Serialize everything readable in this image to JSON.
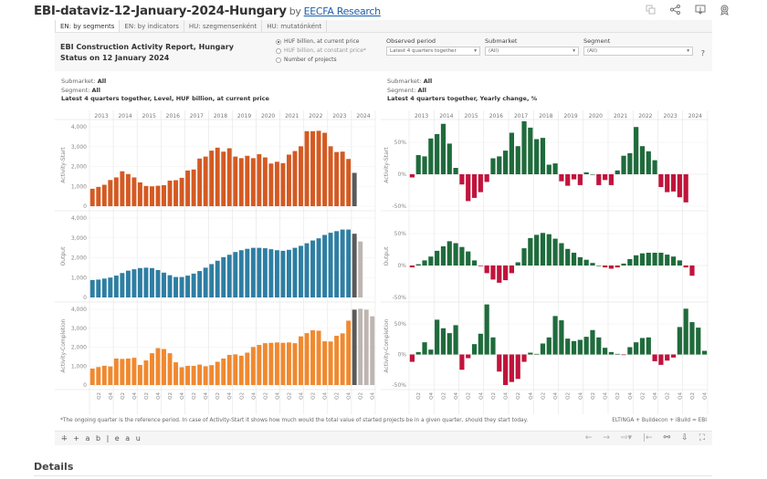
{
  "page": {
    "title": "EBI-dataviz-12-January-2024-Hungary",
    "by": "by",
    "author_link": "EECFA Research",
    "icons": [
      "copy-icon",
      "share-icon",
      "download-icon",
      "badge-icon"
    ]
  },
  "tabs": [
    {
      "label": "EN: by segments",
      "active": true
    },
    {
      "label": "EN: by indicators",
      "active": false
    },
    {
      "label": "HU: szegmensenként",
      "active": false
    },
    {
      "label": "HU: mutatónként",
      "active": false
    }
  ],
  "header": {
    "report_title_line1": "EBI Construction Activity Report, Hungary",
    "report_title_line2": "Status on 12 January 2024",
    "radios": [
      {
        "label": "HUF billion, at current price",
        "checked": true
      },
      {
        "label": "HUF billion, at constant price*",
        "checked": false
      },
      {
        "label": "Number of projects",
        "checked": false
      }
    ],
    "filters": [
      {
        "label": "Observed period",
        "value": "Latest 4 quarters together"
      },
      {
        "label": "Submarket",
        "value": "(All)"
      },
      {
        "label": "Segment",
        "value": "(All)"
      }
    ],
    "help": "?"
  },
  "left_info": {
    "submarket_label": "Submarket:",
    "submarket_value": "All",
    "segment_label": "Segment:",
    "segment_value": "All",
    "caption": "Latest 4 quarters together, Level, HUF billion, at current price"
  },
  "right_info": {
    "submarket_label": "Submarket:",
    "submarket_value": "All",
    "segment_label": "Segment:",
    "segment_value": "All",
    "caption": "Latest 4 quarters together, Yearly change, %"
  },
  "colors": {
    "start": "#d45a22",
    "output": "#2e7ea3",
    "completion": "#f0892f",
    "current": "#5a5a5a",
    "forecast": "#bdb5b1",
    "positive": "#1f6b3c",
    "negative": "#c0143c"
  },
  "chart_data": [
    {
      "type": "bar",
      "title": "Latest 4 quarters together, Level, HUF billion, at current price",
      "years": [
        "2013",
        "2014",
        "2015",
        "2016",
        "2017",
        "2018",
        "2019",
        "2020",
        "2021",
        "2022",
        "2023",
        "2024"
      ],
      "quarter_labels": [
        "Q2",
        "Q4"
      ],
      "ylim": [
        0,
        4000
      ],
      "yticks": [
        "0",
        "1,000",
        "2,000",
        "3,000",
        "4,000"
      ],
      "series": [
        {
          "name": "Activity-Start",
          "values": [
            880,
            970,
            1080,
            1320,
            1450,
            1760,
            1620,
            1450,
            1200,
            1020,
            1000,
            1030,
            1060,
            1290,
            1310,
            1430,
            1800,
            1850,
            2400,
            2500,
            2800,
            2950,
            2750,
            2920,
            2500,
            2420,
            2540,
            2420,
            2620,
            2460,
            2150,
            2240,
            2170,
            2600,
            2780,
            3020,
            3780,
            3780,
            3800,
            3700,
            3020,
            2730,
            2750,
            2380
          ],
          "current": 1680,
          "forecast": []
        },
        {
          "name": "Output",
          "values": [
            880,
            900,
            950,
            1000,
            1100,
            1230,
            1350,
            1420,
            1480,
            1500,
            1480,
            1380,
            1250,
            1120,
            1030,
            1030,
            1100,
            1200,
            1330,
            1500,
            1680,
            1850,
            2030,
            2150,
            2290,
            2380,
            2450,
            2500,
            2500,
            2480,
            2430,
            2380,
            2350,
            2400,
            2500,
            2600,
            2730,
            2870,
            2980,
            3150,
            3260,
            3340,
            3420,
            3420
          ],
          "current": 3210,
          "forecast": [
            2820
          ]
        },
        {
          "name": "Activity-Completion",
          "values": [
            870,
            950,
            1020,
            980,
            1400,
            1380,
            1400,
            1440,
            1060,
            1300,
            1680,
            1950,
            1900,
            1680,
            1200,
            940,
            1010,
            1010,
            1080,
            990,
            1050,
            1230,
            1400,
            1590,
            1620,
            1550,
            1710,
            2010,
            2120,
            2210,
            2230,
            2250,
            2230,
            2250,
            2210,
            2570,
            2740,
            2890,
            2870,
            2310,
            2300,
            2600,
            2730,
            3400
          ],
          "current": 3980,
          "forecast": [
            4030,
            3980,
            3630
          ]
        }
      ]
    },
    {
      "type": "bar",
      "title": "Latest 4 quarters together, Yearly change, %",
      "years": [
        "2013",
        "2014",
        "2015",
        "2016",
        "2017",
        "2018",
        "2019",
        "2020",
        "2021",
        "2022",
        "2023",
        "2024"
      ],
      "quarter_labels": [
        "Q2",
        "Q4"
      ],
      "ylim": [
        -50,
        80
      ],
      "yticks": [
        "-50%",
        "0%",
        "50%"
      ],
      "series": [
        {
          "name": "Activity-Start",
          "values": [
            -5,
            30,
            28,
            56,
            63,
            79,
            48,
            10,
            -16,
            -42,
            -37,
            -28,
            -12,
            25,
            28,
            37,
            65,
            44,
            83,
            73,
            55,
            57,
            15,
            17,
            -11,
            -18,
            -8,
            -17,
            3,
            0,
            -17,
            -9,
            -17,
            6,
            29,
            33,
            74,
            44,
            36,
            22,
            -20,
            -28,
            -27,
            -36,
            -44
          ]
        },
        {
          "name": "Output",
          "values": [
            -3,
            2,
            8,
            14,
            23,
            30,
            38,
            35,
            29,
            22,
            8,
            -1,
            -12,
            -22,
            -27,
            -23,
            -12,
            5,
            27,
            43,
            48,
            51,
            49,
            42,
            35,
            26,
            20,
            13,
            9,
            4,
            0,
            -3,
            -5,
            -3,
            3,
            10,
            16,
            19,
            20,
            20,
            20,
            17,
            14,
            8,
            -3,
            -16
          ]
        },
        {
          "name": "Activity-Completion",
          "values": [
            -12,
            4,
            20,
            8,
            57,
            43,
            35,
            48,
            -25,
            -6,
            17,
            34,
            82,
            28,
            -28,
            -50,
            -45,
            -40,
            -12,
            3,
            1,
            18,
            28,
            63,
            56,
            26,
            22,
            24,
            29,
            40,
            28,
            11,
            4,
            1,
            -1,
            12,
            20,
            27,
            28,
            -11,
            -17,
            -10,
            -5,
            45,
            75,
            53,
            44,
            6
          ]
        }
      ]
    }
  ],
  "footer": {
    "note": "*The ongoing quarter is the reference period. In case of Activity-Start it shows how much would the total value of started projects be in a given quarter, should they start today.",
    "credit": "ELTINGA + Buildecon + iBuild = EBI"
  },
  "toolbar": {
    "logo": "+ a b | e a u",
    "icons": [
      "undo-icon",
      "redo-icon",
      "revert-icon",
      "reset-icon",
      "share-icon",
      "download-icon",
      "fullscreen-icon"
    ]
  },
  "details": {
    "title": "Details"
  }
}
